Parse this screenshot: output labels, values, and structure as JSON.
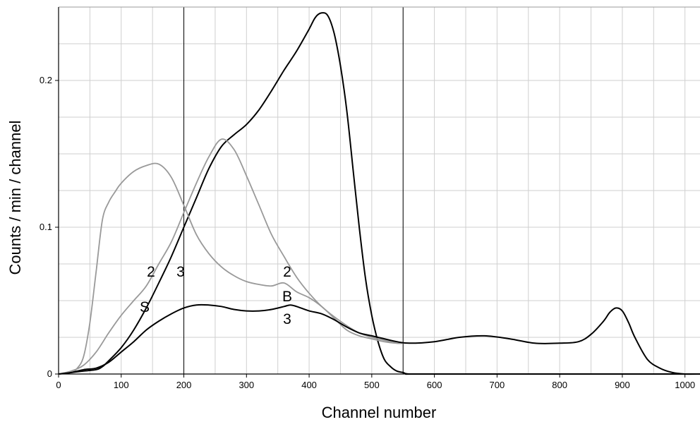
{
  "chart_data": {
    "type": "line",
    "title": "",
    "xlabel": "Channel number",
    "ylabel": "Counts / min / channel",
    "xlim": [
      0,
      1024
    ],
    "ylim": [
      0,
      0.25
    ],
    "x_ticks": [
      "0",
      "100",
      "200",
      "300",
      "400",
      "500",
      "600",
      "700",
      "800",
      "900",
      "1000"
    ],
    "y_ticks": [
      "0",
      "0.1",
      "0.2"
    ],
    "grid": true,
    "legend": "none",
    "vertical_markers": [
      200,
      550
    ],
    "series": [
      {
        "color": "#000000",
        "x": [
          0,
          20,
          40,
          60,
          70,
          80,
          100,
          120,
          140,
          160,
          180,
          200,
          220,
          240,
          260,
          280,
          300,
          320,
          340,
          360,
          380,
          400,
          410,
          420,
          430,
          440,
          450,
          460,
          470,
          480,
          490,
          500,
          510,
          520,
          530,
          540,
          550,
          560,
          600,
          1024
        ],
        "y": [
          0,
          0.001,
          0.002,
          0.003,
          0.005,
          0.009,
          0.018,
          0.03,
          0.045,
          0.062,
          0.08,
          0.1,
          0.12,
          0.14,
          0.155,
          0.163,
          0.17,
          0.18,
          0.193,
          0.207,
          0.22,
          0.235,
          0.243,
          0.246,
          0.244,
          0.232,
          0.21,
          0.18,
          0.14,
          0.1,
          0.065,
          0.04,
          0.022,
          0.01,
          0.005,
          0.002,
          0.001,
          0,
          0,
          0
        ]
      },
      {
        "color": "#999999",
        "x": [
          0,
          20,
          30,
          40,
          50,
          60,
          70,
          80,
          90,
          100,
          120,
          140,
          160,
          180,
          200,
          220,
          240,
          260,
          280,
          300,
          320,
          340,
          360,
          380,
          400,
          420,
          440,
          460,
          480,
          500,
          520,
          540,
          550
        ],
        "y": [
          0,
          0.001,
          0.004,
          0.012,
          0.035,
          0.07,
          0.105,
          0.117,
          0.124,
          0.13,
          0.138,
          0.142,
          0.143,
          0.134,
          0.115,
          0.095,
          0.082,
          0.073,
          0.067,
          0.063,
          0.061,
          0.06,
          0.062,
          0.056,
          0.052,
          0.046,
          0.038,
          0.03,
          0.026,
          0.024,
          0.022,
          0.021,
          0.021
        ]
      },
      {
        "color": "#999999",
        "x": [
          0,
          20,
          40,
          60,
          80,
          100,
          120,
          140,
          160,
          180,
          200,
          220,
          240,
          260,
          280,
          300,
          320,
          340,
          360,
          380,
          400,
          420,
          440,
          460,
          480,
          500,
          520,
          540,
          550
        ],
        "y": [
          0,
          0.002,
          0.006,
          0.015,
          0.028,
          0.04,
          0.05,
          0.06,
          0.075,
          0.09,
          0.11,
          0.13,
          0.148,
          0.16,
          0.153,
          0.135,
          0.115,
          0.095,
          0.08,
          0.066,
          0.055,
          0.046,
          0.039,
          0.033,
          0.028,
          0.025,
          0.023,
          0.021,
          0.021
        ]
      },
      {
        "color": "#000000",
        "x": [
          0,
          20,
          40,
          60,
          80,
          100,
          120,
          140,
          160,
          180,
          200,
          220,
          240,
          260,
          280,
          300,
          320,
          340,
          360,
          370,
          380,
          400,
          420,
          440,
          460,
          480,
          500,
          520,
          540,
          560,
          600,
          640,
          680,
          720,
          760,
          800,
          830,
          850,
          870,
          880,
          890,
          900,
          910,
          920,
          940,
          960,
          980,
          1000,
          1024
        ],
        "y": [
          0,
          0.001,
          0.003,
          0.004,
          0.008,
          0.015,
          0.022,
          0.03,
          0.036,
          0.041,
          0.045,
          0.047,
          0.047,
          0.046,
          0.044,
          0.043,
          0.043,
          0.044,
          0.046,
          0.047,
          0.046,
          0.043,
          0.041,
          0.037,
          0.032,
          0.028,
          0.026,
          0.024,
          0.022,
          0.021,
          0.022,
          0.025,
          0.026,
          0.024,
          0.021,
          0.021,
          0.022,
          0.027,
          0.036,
          0.042,
          0.045,
          0.043,
          0.035,
          0.025,
          0.01,
          0.004,
          0.001,
          0,
          0
        ]
      }
    ],
    "annotations": [
      "2",
      "3",
      "S",
      "2",
      "B",
      "3"
    ]
  }
}
